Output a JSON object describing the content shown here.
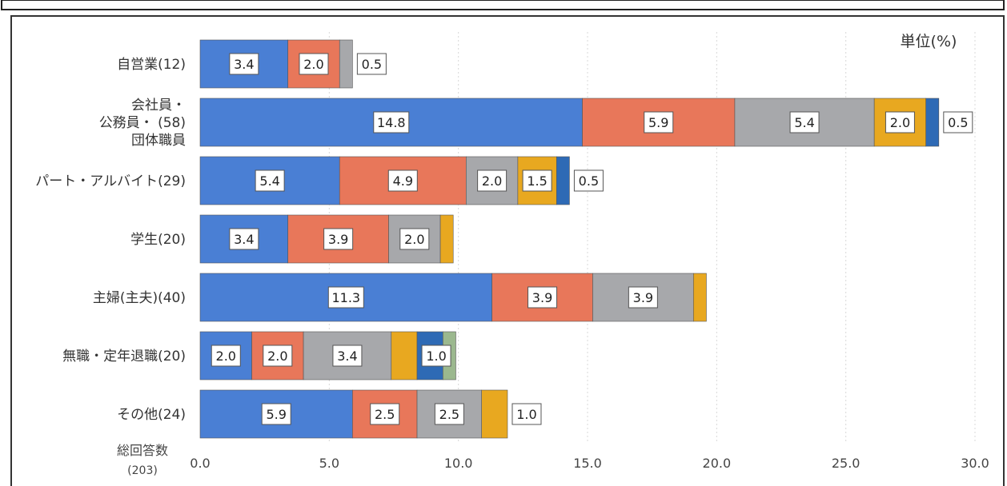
{
  "chart_data": {
    "type": "bar",
    "orientation": "horizontal",
    "stacked": true,
    "unit_label": "単位(%)",
    "axis_caption": [
      "総回答数",
      "(203)"
    ],
    "xlim": [
      0,
      30
    ],
    "xticks": [
      "0.0",
      "5.0",
      "10.0",
      "15.0",
      "20.0",
      "25.0",
      "30.0"
    ],
    "grid": true,
    "segment_colors": [
      "#4a7fd4",
      "#e8775a",
      "#a7a8ab",
      "#e8a820",
      "#2e6ab5",
      "#9bb88e"
    ],
    "categories": [
      {
        "label_lines": [
          "自営業(12)"
        ],
        "values": [
          3.4,
          2.0,
          0.5
        ],
        "labels": [
          "3.4",
          "2.0",
          "0.5"
        ]
      },
      {
        "label_lines": [
          "会社員・",
          "公務員・ (58)",
          "団体職員"
        ],
        "values": [
          14.8,
          5.9,
          5.4,
          2.0,
          0.5
        ],
        "labels": [
          "14.8",
          "5.9",
          "5.4",
          "2.0",
          "0.5"
        ]
      },
      {
        "label_lines": [
          "パート・アルバイト(29)"
        ],
        "values": [
          5.4,
          4.9,
          2.0,
          1.5,
          0.5
        ],
        "labels": [
          "5.4",
          "4.9",
          "2.0",
          "1.5",
          "0.5"
        ]
      },
      {
        "label_lines": [
          "学生(20)"
        ],
        "values": [
          3.4,
          3.9,
          2.0,
          0.5
        ],
        "labels": [
          "3.4",
          "3.9",
          "2.0",
          ""
        ]
      },
      {
        "label_lines": [
          "主婦(主夫)(40)"
        ],
        "values": [
          11.3,
          3.9,
          3.9,
          0.5
        ],
        "labels": [
          "11.3",
          "3.9",
          "3.9",
          ""
        ]
      },
      {
        "label_lines": [
          "無職・定年退職(20)"
        ],
        "values": [
          2.0,
          2.0,
          3.4,
          1.0,
          1.0,
          0.5
        ],
        "labels": [
          "2.0",
          "2.0",
          "3.4",
          "1.0",
          "",
          ""
        ]
      },
      {
        "label_lines": [
          "その他(24)"
        ],
        "values": [
          5.9,
          2.5,
          2.5,
          1.0
        ],
        "labels": [
          "5.9",
          "2.5",
          "2.5",
          "1.0"
        ]
      }
    ]
  }
}
